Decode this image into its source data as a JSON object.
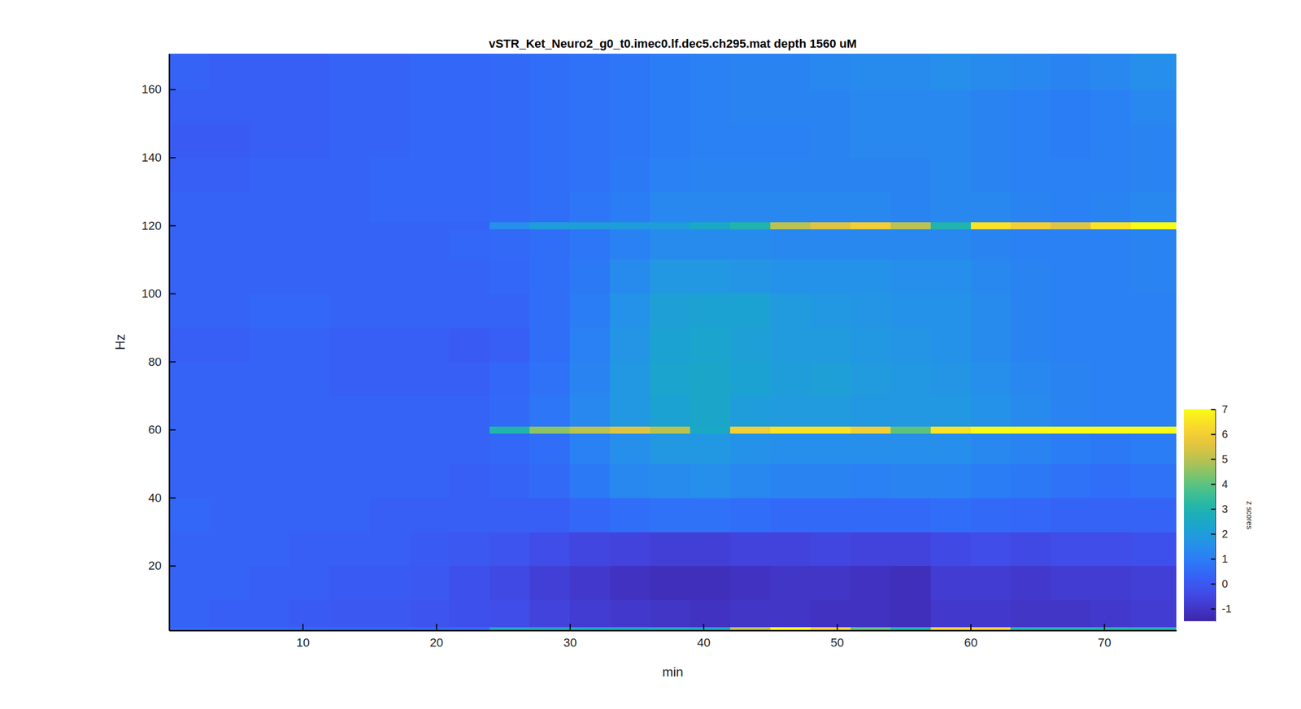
{
  "chart_data": {
    "type": "heatmap",
    "title": "vSTR_Ket_Neuro2_g0_t0.imec0.lf.dec5.ch295.mat depth 1560 uM",
    "x_label": "min",
    "y_label": "Hz",
    "x_bins": [
      0,
      3,
      6,
      9,
      12,
      15,
      18,
      21,
      24,
      27,
      30,
      33,
      36,
      39,
      42,
      45,
      48,
      51,
      54,
      57,
      60,
      63,
      66,
      69,
      72,
      75.4
    ],
    "y_bins": [
      1,
      2,
      10,
      20,
      30,
      40,
      50,
      59,
      61,
      70,
      80,
      90,
      100,
      110,
      119,
      121,
      130,
      140,
      150,
      160,
      170.5
    ],
    "cells": [
      [
        0.5,
        0.5,
        0.5,
        0.5,
        0.5,
        0.5,
        0.5,
        0.5,
        2.5,
        2.5,
        2.5,
        2.5,
        2.5,
        2.5,
        5,
        7,
        6,
        4,
        3,
        6,
        6,
        3,
        3,
        3,
        3
      ],
      [
        0.3,
        0.2,
        0.2,
        0.1,
        0.0,
        0.0,
        -0.1,
        -0.2,
        -0.3,
        -0.6,
        -0.8,
        -0.9,
        -1.0,
        -1.1,
        -1.0,
        -1.0,
        -1.1,
        -1.1,
        -1.2,
        -0.9,
        -0.9,
        -1.0,
        -1.0,
        -0.9,
        -0.8
      ],
      [
        0.3,
        0.3,
        0.2,
        0.2,
        0.1,
        0.1,
        0.0,
        -0.2,
        -0.4,
        -0.7,
        -0.9,
        -1.1,
        -1.2,
        -1.2,
        -1.1,
        -1.0,
        -1.0,
        -1.1,
        -1.2,
        -0.8,
        -0.8,
        -0.9,
        -0.8,
        -0.8,
        -0.7
      ],
      [
        0.3,
        0.3,
        0.3,
        0.2,
        0.2,
        0.2,
        0.1,
        0.0,
        -0.1,
        -0.3,
        -0.5,
        -0.6,
        -0.7,
        -0.7,
        -0.6,
        -0.6,
        -0.5,
        -0.6,
        -0.6,
        -0.4,
        -0.3,
        -0.4,
        -0.3,
        -0.3,
        -0.2
      ],
      [
        0.4,
        0.3,
        0.3,
        0.3,
        0.3,
        0.2,
        0.2,
        0.2,
        0.2,
        0.2,
        0.4,
        0.6,
        0.7,
        0.7,
        0.6,
        0.5,
        0.5,
        0.5,
        0.5,
        0.6,
        0.5,
        0.4,
        0.3,
        0.3,
        0.3
      ],
      [
        0.3,
        0.3,
        0.3,
        0.3,
        0.3,
        0.3,
        0.3,
        0.2,
        0.3,
        0.5,
        0.9,
        1.3,
        1.4,
        1.5,
        1.3,
        1.2,
        1.2,
        1.1,
        1.2,
        1.2,
        1.0,
        0.9,
        0.7,
        0.6,
        0.7
      ],
      [
        0.3,
        0.3,
        0.3,
        0.3,
        0.3,
        0.3,
        0.3,
        0.3,
        0.4,
        0.6,
        1.1,
        1.5,
        1.8,
        1.8,
        1.6,
        1.5,
        1.5,
        1.5,
        1.5,
        1.5,
        1.3,
        1.2,
        1.0,
        0.9,
        1.0
      ],
      [
        0.3,
        0.3,
        0.3,
        0.3,
        0.3,
        0.3,
        0.3,
        0.3,
        3.0,
        4.5,
        5.0,
        5.5,
        5.0,
        2.5,
        6.0,
        6.5,
        6.5,
        6.0,
        4.0,
        6.5,
        7.0,
        7.0,
        7.0,
        7.0,
        7.0
      ],
      [
        0.3,
        0.3,
        0.3,
        0.3,
        0.3,
        0.3,
        0.3,
        0.3,
        0.5,
        0.8,
        1.3,
        1.8,
        2.2,
        2.4,
        2.0,
        1.9,
        1.9,
        1.8,
        1.8,
        1.8,
        1.6,
        1.4,
        1.2,
        1.1,
        1.1
      ],
      [
        0.3,
        0.3,
        0.3,
        0.3,
        0.2,
        0.2,
        0.2,
        0.2,
        0.4,
        0.7,
        1.2,
        1.8,
        2.3,
        2.4,
        2.2,
        2.0,
        2.1,
        1.9,
        1.8,
        1.7,
        1.5,
        1.3,
        1.2,
        1.1,
        1.1
      ],
      [
        0.2,
        0.2,
        0.3,
        0.3,
        0.2,
        0.2,
        0.2,
        0.1,
        0.2,
        0.6,
        1.1,
        1.7,
        2.2,
        2.3,
        2.1,
        1.9,
        1.9,
        1.8,
        1.7,
        1.6,
        1.4,
        1.2,
        1.1,
        1.1,
        1.1
      ],
      [
        0.3,
        0.3,
        0.4,
        0.4,
        0.3,
        0.3,
        0.3,
        0.3,
        0.3,
        0.6,
        1.0,
        1.6,
        2.1,
        2.2,
        2.2,
        1.9,
        1.8,
        1.7,
        1.6,
        1.6,
        1.4,
        1.2,
        1.1,
        1.1,
        1.1
      ],
      [
        0.3,
        0.3,
        0.3,
        0.3,
        0.3,
        0.3,
        0.3,
        0.3,
        0.4,
        0.6,
        0.9,
        1.4,
        1.8,
        1.8,
        1.7,
        1.6,
        1.6,
        1.6,
        1.5,
        1.5,
        1.3,
        1.2,
        1.1,
        1.1,
        1.2
      ],
      [
        0.3,
        0.3,
        0.3,
        0.3,
        0.3,
        0.3,
        0.3,
        0.4,
        0.5,
        0.6,
        0.8,
        1.1,
        1.4,
        1.4,
        1.4,
        1.3,
        1.3,
        1.3,
        1.3,
        1.3,
        1.2,
        1.1,
        1.1,
        1.1,
        1.2
      ],
      [
        0.3,
        0.3,
        0.3,
        0.3,
        0.3,
        0.3,
        0.3,
        0.3,
        1.5,
        2.0,
        2.0,
        2.0,
        2.0,
        2.5,
        3.0,
        5.0,
        5.5,
        6.0,
        5.0,
        3.0,
        6.5,
        6.0,
        5.5,
        6.5,
        7.0
      ],
      [
        0.3,
        0.3,
        0.3,
        0.3,
        0.3,
        0.4,
        0.4,
        0.4,
        0.5,
        0.6,
        0.8,
        1.0,
        1.3,
        1.3,
        1.3,
        1.3,
        1.3,
        1.3,
        1.2,
        1.3,
        1.3,
        1.2,
        1.1,
        1.2,
        1.3
      ],
      [
        0.2,
        0.2,
        0.3,
        0.3,
        0.3,
        0.4,
        0.4,
        0.4,
        0.5,
        0.6,
        0.7,
        0.9,
        1.1,
        1.2,
        1.2,
        1.2,
        1.2,
        1.2,
        1.2,
        1.3,
        1.2,
        1.1,
        1.1,
        1.1,
        1.2
      ],
      [
        0.1,
        0.1,
        0.2,
        0.2,
        0.3,
        0.3,
        0.4,
        0.4,
        0.5,
        0.6,
        0.7,
        0.8,
        1.0,
        1.1,
        1.1,
        1.1,
        1.2,
        1.3,
        1.3,
        1.3,
        1.2,
        1.1,
        1.0,
        1.1,
        1.2
      ],
      [
        0.2,
        0.2,
        0.2,
        0.2,
        0.3,
        0.3,
        0.4,
        0.4,
        0.5,
        0.6,
        0.7,
        0.8,
        1.0,
        1.1,
        1.2,
        1.2,
        1.2,
        1.3,
        1.3,
        1.3,
        1.2,
        1.1,
        1.0,
        1.1,
        1.3
      ],
      [
        0.3,
        0.2,
        0.2,
        0.2,
        0.3,
        0.3,
        0.4,
        0.4,
        0.5,
        0.6,
        0.7,
        0.8,
        1.0,
        1.1,
        1.2,
        1.2,
        1.3,
        1.4,
        1.4,
        1.5,
        1.4,
        1.3,
        1.2,
        1.3,
        1.5
      ]
    ],
    "xlim": [
      0,
      75.4
    ],
    "ylim": [
      1,
      170.5
    ],
    "xticks": [
      10,
      20,
      30,
      40,
      50,
      60,
      70
    ],
    "yticks": [
      20,
      40,
      60,
      80,
      100,
      120,
      140,
      160
    ],
    "color_label": "z scores",
    "color_range": [
      -1.5,
      7
    ],
    "color_ticks": [
      -1,
      0,
      1,
      2,
      3,
      4,
      5,
      6,
      7
    ]
  }
}
